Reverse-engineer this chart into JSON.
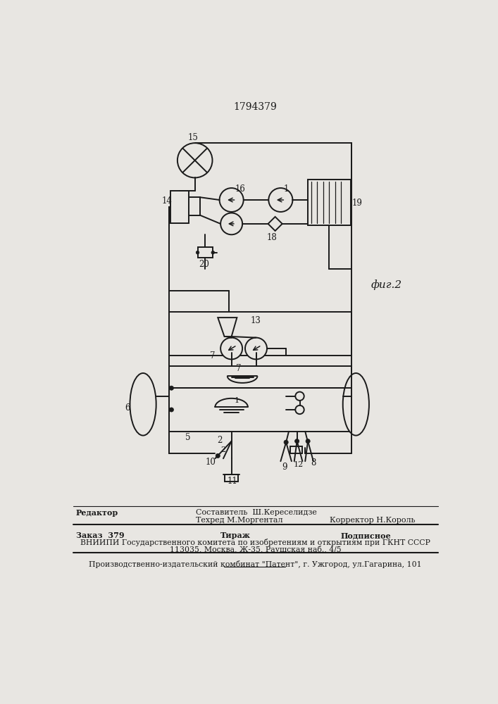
{
  "patent_number": "1794379",
  "fig_label": "фиг.2",
  "background_color": "#e8e6e2",
  "line_color": "#1a1a1a",
  "text_color": "#1a1a1a",
  "footer_line1_left": "Редактор",
  "footer_line1_center1": "Составитель  Ш.Кереселидзе",
  "footer_line1_center2": "Техред М.Моргентал",
  "footer_line1_right": "Корректор Н.Король",
  "footer_line2_col1": "Заказ  379",
  "footer_line2_col2": "Тираж",
  "footer_line2_col3": "Подписное",
  "footer_line3": "ВНИИПИ Государственного комитета по изобретениям и открытиям при ГКНТ СССР",
  "footer_line4": "113035, Москва, Ж-35, Раушская наб., 4/5",
  "footer_line5": "Производственно-издательский комбинат \"Патент\", г. Ужгород, ул.Гагарина, 101"
}
